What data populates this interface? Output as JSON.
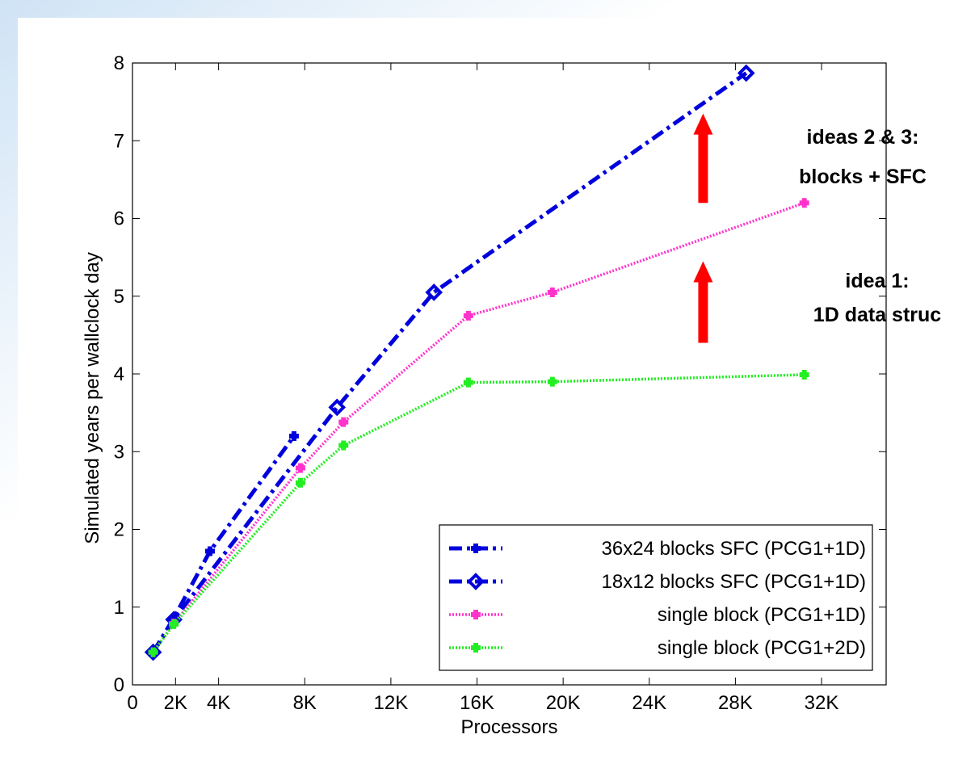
{
  "chart_data": {
    "type": "line",
    "title": "",
    "xlabel": "Processors",
    "ylabel": "Simulated years per wallclock day",
    "xlim": [
      0,
      35000
    ],
    "ylim": [
      0,
      8
    ],
    "x_ticks": [
      0,
      2000,
      4000,
      8000,
      12000,
      16000,
      20000,
      24000,
      28000,
      32000
    ],
    "x_tick_labels": [
      "0",
      "2K",
      "4K",
      "8K",
      "12K",
      "16K",
      "20K",
      "24K",
      "28K",
      "32K"
    ],
    "y_ticks": [
      0,
      1,
      2,
      3,
      4,
      5,
      6,
      7,
      8
    ],
    "y_tick_labels": [
      "0",
      "1",
      "2",
      "3",
      "4",
      "5",
      "6",
      "7",
      "8"
    ],
    "grid": false,
    "legend_position": "bottom-right",
    "series": [
      {
        "name": "36x24 blocks SFC (PCG1+1D)",
        "color": "#0000dd",
        "line_style": "dash-dot",
        "marker": "plus",
        "x": [
          960,
          1920,
          3600,
          7500
        ],
        "y": [
          0.42,
          0.86,
          1.72,
          3.2
        ]
      },
      {
        "name": "18x12 blocks SFC (PCG1+1D)",
        "color": "#0000dd",
        "line_style": "dash-dot",
        "marker": "diamond",
        "x": [
          960,
          1920,
          9500,
          14000,
          28500
        ],
        "y": [
          0.42,
          0.84,
          3.57,
          5.05,
          7.87
        ]
      },
      {
        "name": "single block (PCG1+1D)",
        "color": "#ff33cc",
        "line_style": "dotted",
        "marker": "plus",
        "x": [
          960,
          1920,
          7800,
          9800,
          15600,
          19500,
          31200
        ],
        "y": [
          0.42,
          0.79,
          2.79,
          3.38,
          4.75,
          5.05,
          6.2
        ]
      },
      {
        "name": "single block (PCG1+2D)",
        "color": "#22ee22",
        "line_style": "dotted",
        "marker": "plus",
        "x": [
          960,
          1920,
          7800,
          9800,
          15600,
          19500,
          31200
        ],
        "y": [
          0.42,
          0.78,
          2.6,
          3.08,
          3.89,
          3.9,
          3.99
        ]
      }
    ],
    "annotations": [
      {
        "line1": "ideas 2 & 3:",
        "line2": "blocks + SFC",
        "arrow_x": 26500,
        "arrow_from": 6.2,
        "arrow_to": 7.35
      },
      {
        "line1": "idea 1:",
        "line2": "1D data struc",
        "arrow_x": 26500,
        "arrow_from": 4.4,
        "arrow_to": 5.45
      }
    ]
  }
}
